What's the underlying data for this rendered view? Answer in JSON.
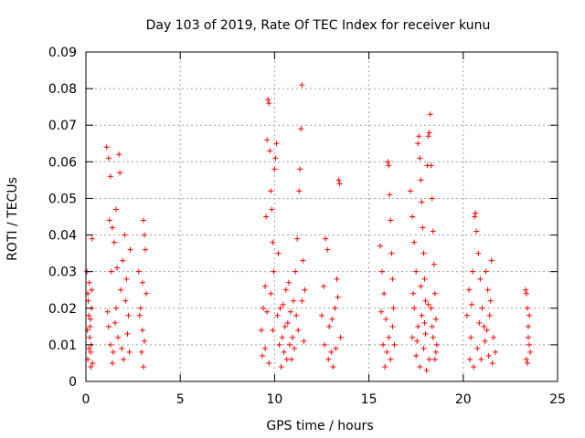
{
  "chart_data": {
    "type": "scatter",
    "title": "Day 103 of 2019, Rate Of TEC Index for receiver kunu",
    "xlabel": "GPS time / hours",
    "ylabel": "ROTI / TECUs",
    "xlim": [
      0,
      25
    ],
    "ylim": [
      0,
      0.09
    ],
    "x_ticks": [
      0,
      5,
      10,
      15,
      20,
      25
    ],
    "x_tick_labels": [
      "0",
      "5",
      "10",
      "15",
      "20",
      "25"
    ],
    "y_ticks": [
      0,
      0.01,
      0.02,
      0.03,
      0.04,
      0.05,
      0.06,
      0.07,
      0.08,
      0.09
    ],
    "y_tick_labels": [
      "0",
      "0.01",
      "0.02",
      "0.03",
      "0.04",
      "0.05",
      "0.06",
      "0.07",
      "0.08",
      "0.09"
    ],
    "grid": true,
    "marker": "+",
    "marker_color": "#ff0000",
    "series": [
      {
        "name": "ROTI",
        "points": [
          [
            0.05,
            0.03
          ],
          [
            0.1,
            0.024
          ],
          [
            0.15,
            0.018
          ],
          [
            0.2,
            0.012
          ],
          [
            0.25,
            0.008
          ],
          [
            0.3,
            0.02
          ],
          [
            0.1,
            0.006
          ],
          [
            0.18,
            0.027
          ],
          [
            0.22,
            0.015
          ],
          [
            0.28,
            0.01
          ],
          [
            0.33,
            0.039
          ],
          [
            0.35,
            0.005
          ],
          [
            0.08,
            0.014
          ],
          [
            0.12,
            0.022
          ],
          [
            0.26,
            0.004
          ],
          [
            0.31,
            0.025
          ],
          [
            0.16,
            0.009
          ],
          [
            0.24,
            0.017
          ],
          [
            1.1,
            0.064
          ],
          [
            1.2,
            0.061
          ],
          [
            1.3,
            0.056
          ],
          [
            1.25,
            0.044
          ],
          [
            1.4,
            0.042
          ],
          [
            1.6,
            0.047
          ],
          [
            1.75,
            0.062
          ],
          [
            1.8,
            0.057
          ],
          [
            1.5,
            0.038
          ],
          [
            1.35,
            0.03
          ],
          [
            1.2,
            0.015
          ],
          [
            1.3,
            0.01
          ],
          [
            1.45,
            0.008
          ],
          [
            1.6,
            0.02
          ],
          [
            1.7,
            0.012
          ],
          [
            1.85,
            0.025
          ],
          [
            1.95,
            0.033
          ],
          [
            2.05,
            0.04
          ],
          [
            2.15,
            0.028
          ],
          [
            2.25,
            0.018
          ],
          [
            2.3,
            0.008
          ],
          [
            2.35,
            0.036
          ],
          [
            2.2,
            0.013
          ],
          [
            2.0,
            0.006
          ],
          [
            1.55,
            0.016
          ],
          [
            1.4,
            0.005
          ],
          [
            1.9,
            0.009
          ],
          [
            2.1,
            0.022
          ],
          [
            1.65,
            0.031
          ],
          [
            1.15,
            0.019
          ],
          [
            2.8,
            0.03
          ],
          [
            2.9,
            0.02
          ],
          [
            3.0,
            0.014
          ],
          [
            3.05,
            0.044
          ],
          [
            3.1,
            0.04
          ],
          [
            3.15,
            0.036
          ],
          [
            2.95,
            0.008
          ],
          [
            3.05,
            0.004
          ],
          [
            3.2,
            0.024
          ],
          [
            2.85,
            0.018
          ],
          [
            3.1,
            0.011
          ],
          [
            3.0,
            0.027
          ],
          [
            9.3,
            0.014
          ],
          [
            9.4,
            0.02
          ],
          [
            9.5,
            0.026
          ],
          [
            9.55,
            0.045
          ],
          [
            9.6,
            0.066
          ],
          [
            9.65,
            0.077
          ],
          [
            9.7,
            0.076
          ],
          [
            9.75,
            0.063
          ],
          [
            9.8,
            0.052
          ],
          [
            9.85,
            0.047
          ],
          [
            9.9,
            0.038
          ],
          [
            9.95,
            0.03
          ],
          [
            10.0,
            0.058
          ],
          [
            10.05,
            0.061
          ],
          [
            10.1,
            0.065
          ],
          [
            10.2,
            0.035
          ],
          [
            10.3,
            0.02
          ],
          [
            10.4,
            0.012
          ],
          [
            10.5,
            0.008
          ],
          [
            10.6,
            0.025
          ],
          [
            10.7,
            0.016
          ],
          [
            10.8,
            0.01
          ],
          [
            10.9,
            0.006
          ],
          [
            11.0,
            0.022
          ],
          [
            11.1,
            0.03
          ],
          [
            11.2,
            0.039
          ],
          [
            11.3,
            0.052
          ],
          [
            11.35,
            0.058
          ],
          [
            11.4,
            0.069
          ],
          [
            11.45,
            0.081
          ],
          [
            11.5,
            0.033
          ],
          [
            11.6,
            0.025
          ],
          [
            9.5,
            0.009
          ],
          [
            9.7,
            0.005
          ],
          [
            9.9,
            0.014
          ],
          [
            10.15,
            0.018
          ],
          [
            10.35,
            0.004
          ],
          [
            10.55,
            0.015
          ],
          [
            10.75,
            0.027
          ],
          [
            10.95,
            0.012
          ],
          [
            11.15,
            0.018
          ],
          [
            11.55,
            0.011
          ],
          [
            9.35,
            0.007
          ],
          [
            9.6,
            0.019
          ],
          [
            9.8,
            0.024
          ],
          [
            10.25,
            0.01
          ],
          [
            10.45,
            0.021
          ],
          [
            10.65,
            0.006
          ],
          [
            10.85,
            0.019
          ],
          [
            11.05,
            0.009
          ],
          [
            11.25,
            0.014
          ],
          [
            11.45,
            0.022
          ],
          [
            12.5,
            0.018
          ],
          [
            12.6,
            0.026
          ],
          [
            12.7,
            0.039
          ],
          [
            12.8,
            0.036
          ],
          [
            12.9,
            0.015
          ],
          [
            13.0,
            0.008
          ],
          [
            13.1,
            0.004
          ],
          [
            13.2,
            0.02
          ],
          [
            13.3,
            0.028
          ],
          [
            13.4,
            0.055
          ],
          [
            13.45,
            0.054
          ],
          [
            13.5,
            0.012
          ],
          [
            12.65,
            0.01
          ],
          [
            12.85,
            0.006
          ],
          [
            13.05,
            0.017
          ],
          [
            13.25,
            0.009
          ],
          [
            13.35,
            0.023
          ],
          [
            15.6,
            0.037
          ],
          [
            15.7,
            0.03
          ],
          [
            15.8,
            0.024
          ],
          [
            15.9,
            0.017
          ],
          [
            16.0,
            0.06
          ],
          [
            16.05,
            0.059
          ],
          [
            16.1,
            0.051
          ],
          [
            16.15,
            0.044
          ],
          [
            16.2,
            0.035
          ],
          [
            16.25,
            0.028
          ],
          [
            16.3,
            0.02
          ],
          [
            15.75,
            0.01
          ],
          [
            15.85,
            0.004
          ],
          [
            15.95,
            0.008
          ],
          [
            16.05,
            0.012
          ],
          [
            16.15,
            0.006
          ],
          [
            16.25,
            0.015
          ],
          [
            15.65,
            0.019
          ],
          [
            16.35,
            0.01
          ],
          [
            17.2,
            0.052
          ],
          [
            17.3,
            0.045
          ],
          [
            17.4,
            0.038
          ],
          [
            17.5,
            0.03
          ],
          [
            17.6,
            0.065
          ],
          [
            17.65,
            0.067
          ],
          [
            17.7,
            0.061
          ],
          [
            17.75,
            0.055
          ],
          [
            17.8,
            0.049
          ],
          [
            17.85,
            0.042
          ],
          [
            17.9,
            0.035
          ],
          [
            17.95,
            0.028
          ],
          [
            18.0,
            0.022
          ],
          [
            18.1,
            0.059
          ],
          [
            18.15,
            0.067
          ],
          [
            18.2,
            0.068
          ],
          [
            18.25,
            0.073
          ],
          [
            18.3,
            0.059
          ],
          [
            18.35,
            0.05
          ],
          [
            18.4,
            0.041
          ],
          [
            18.45,
            0.032
          ],
          [
            18.5,
            0.024
          ],
          [
            18.55,
            0.017
          ],
          [
            18.6,
            0.01
          ],
          [
            17.3,
            0.012
          ],
          [
            17.5,
            0.007
          ],
          [
            17.7,
            0.004
          ],
          [
            17.9,
            0.009
          ],
          [
            18.05,
            0.003
          ],
          [
            18.2,
            0.006
          ],
          [
            18.4,
            0.012
          ],
          [
            17.4,
            0.02
          ],
          [
            17.6,
            0.015
          ],
          [
            17.8,
            0.018
          ],
          [
            18.0,
            0.013
          ],
          [
            18.3,
            0.02
          ],
          [
            18.5,
            0.006
          ],
          [
            17.35,
            0.024
          ],
          [
            17.55,
            0.011
          ],
          [
            17.75,
            0.026
          ],
          [
            17.95,
            0.016
          ],
          [
            18.15,
            0.021
          ],
          [
            18.35,
            0.015
          ],
          [
            18.55,
            0.008
          ],
          [
            20.2,
            0.018
          ],
          [
            20.3,
            0.025
          ],
          [
            20.4,
            0.012
          ],
          [
            20.5,
            0.03
          ],
          [
            20.6,
            0.045
          ],
          [
            20.65,
            0.046
          ],
          [
            20.7,
            0.041
          ],
          [
            20.8,
            0.035
          ],
          [
            20.9,
            0.028
          ],
          [
            21.0,
            0.02
          ],
          [
            21.1,
            0.015
          ],
          [
            21.2,
            0.03
          ],
          [
            21.3,
            0.025
          ],
          [
            21.4,
            0.018
          ],
          [
            21.5,
            0.033
          ],
          [
            21.6,
            0.012
          ],
          [
            21.7,
            0.008
          ],
          [
            20.35,
            0.006
          ],
          [
            20.55,
            0.004
          ],
          [
            20.75,
            0.009
          ],
          [
            20.95,
            0.006
          ],
          [
            21.15,
            0.011
          ],
          [
            21.35,
            0.007
          ],
          [
            21.55,
            0.005
          ],
          [
            20.45,
            0.021
          ],
          [
            20.85,
            0.016
          ],
          [
            21.25,
            0.014
          ],
          [
            21.45,
            0.022
          ],
          [
            23.3,
            0.025
          ],
          [
            23.35,
            0.024
          ],
          [
            23.4,
            0.02
          ],
          [
            23.45,
            0.015
          ],
          [
            23.5,
            0.01
          ],
          [
            23.55,
            0.008
          ],
          [
            23.4,
            0.005
          ],
          [
            23.5,
            0.018
          ],
          [
            23.45,
            0.012
          ],
          [
            23.35,
            0.006
          ]
        ]
      }
    ]
  }
}
